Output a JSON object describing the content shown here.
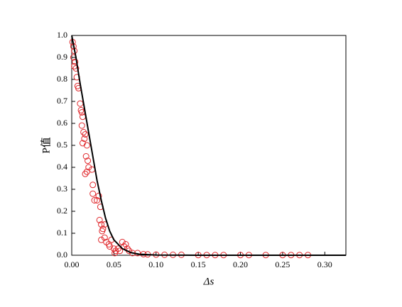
{
  "chart_data": {
    "type": "scatter",
    "xlabel": "Δs",
    "ylabel": "P值",
    "xlim": [
      0,
      0.325
    ],
    "ylim": [
      0,
      1.0
    ],
    "xticks": [
      {
        "value": 0,
        "label": "0.00"
      },
      {
        "value": 0.05,
        "label": "0.05"
      },
      {
        "value": 0.1,
        "label": "0.10"
      },
      {
        "value": 0.15,
        "label": "0.15"
      },
      {
        "value": 0.2,
        "label": "0.20"
      },
      {
        "value": 0.25,
        "label": "0.25"
      },
      {
        "value": 0.3,
        "label": "0.30"
      }
    ],
    "yticks": [
      {
        "value": 0,
        "label": "0.0"
      },
      0.1,
      0.2,
      0.3,
      0.4,
      0.5,
      0.6,
      0.7,
      0.8,
      0.9,
      {
        "value": 1,
        "label": "1.0"
      }
    ],
    "series": [
      {
        "type": "scatter",
        "color": "#e0282c",
        "x": [
          0.001,
          0.002,
          0.003,
          0.002,
          0.004,
          0.003,
          0.005,
          0.006,
          0.007,
          0.008,
          0.01,
          0.011,
          0.012,
          0.013,
          0.012,
          0.014,
          0.015,
          0.016,
          0.013,
          0.018,
          0.017,
          0.019,
          0.02,
          0.016,
          0.018,
          0.024,
          0.025,
          0.025,
          0.027,
          0.03,
          0.032,
          0.034,
          0.033,
          0.035,
          0.037,
          0.039,
          0.036,
          0.039,
          0.035,
          0.041,
          0.044,
          0.045,
          0.047,
          0.05,
          0.052,
          0.051,
          0.055,
          0.057,
          0.06,
          0.062,
          0.064,
          0.066,
          0.068,
          0.072,
          0.078,
          0.085,
          0.09,
          0.1,
          0.11,
          0.12,
          0.13,
          0.15,
          0.16,
          0.17,
          0.18,
          0.2,
          0.21,
          0.23,
          0.25,
          0.26,
          0.27,
          0.28
        ],
        "values": [
          0.97,
          0.95,
          0.93,
          0.9,
          0.88,
          0.86,
          0.85,
          0.81,
          0.77,
          0.76,
          0.69,
          0.66,
          0.65,
          0.63,
          0.59,
          0.56,
          0.53,
          0.55,
          0.51,
          0.5,
          0.45,
          0.43,
          0.4,
          0.37,
          0.38,
          0.39,
          0.32,
          0.28,
          0.25,
          0.25,
          0.27,
          0.22,
          0.16,
          0.14,
          0.12,
          0.14,
          0.11,
          0.08,
          0.07,
          0.06,
          0.05,
          0.04,
          0.07,
          0.03,
          0.02,
          0.01,
          0.03,
          0.02,
          0.06,
          0.04,
          0.05,
          0.03,
          0.02,
          0.01,
          0.01,
          0.005,
          0.004,
          0.003,
          0.002,
          0.002,
          0.002,
          0.001,
          0.001,
          0.001,
          0.001,
          0.001,
          0.001,
          0.001,
          0.001,
          0.001,
          0.001,
          0.001
        ]
      },
      {
        "type": "line",
        "color": "#000000",
        "x": [
          0,
          0.005,
          0.01,
          0.015,
          0.02,
          0.025,
          0.03,
          0.035,
          0.04,
          0.045,
          0.05,
          0.06,
          0.07,
          0.08,
          0.1,
          0.15,
          0.2,
          0.325
        ],
        "values": [
          1.0,
          0.9,
          0.78,
          0.67,
          0.56,
          0.45,
          0.34,
          0.25,
          0.17,
          0.11,
          0.07,
          0.03,
          0.012,
          0.005,
          0.001,
          0,
          0,
          0
        ]
      }
    ]
  }
}
